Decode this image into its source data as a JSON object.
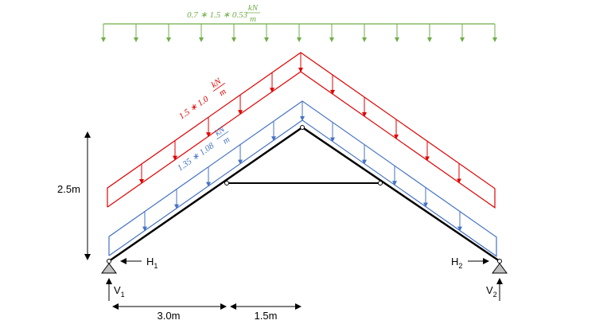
{
  "loads": [
    {
      "expr": "0.7 ∗ 1.5 ∗ 0.53",
      "num": "kN",
      "den": "m"
    },
    {
      "expr": "1.5 ∗ 1.0",
      "num": "kN",
      "den": "m"
    },
    {
      "expr": "1.35 ∗ 1.08",
      "num": "kN",
      "den": "m"
    }
  ],
  "dimensions": {
    "height": "2.5m",
    "span_left": "3.0m",
    "span_right": "1.5m"
  },
  "reactions": [
    {
      "letter": "H",
      "sub": "1"
    },
    {
      "letter": "H",
      "sub": "2"
    },
    {
      "letter": "V",
      "sub": "1"
    },
    {
      "letter": "V",
      "sub": "2"
    }
  ]
}
